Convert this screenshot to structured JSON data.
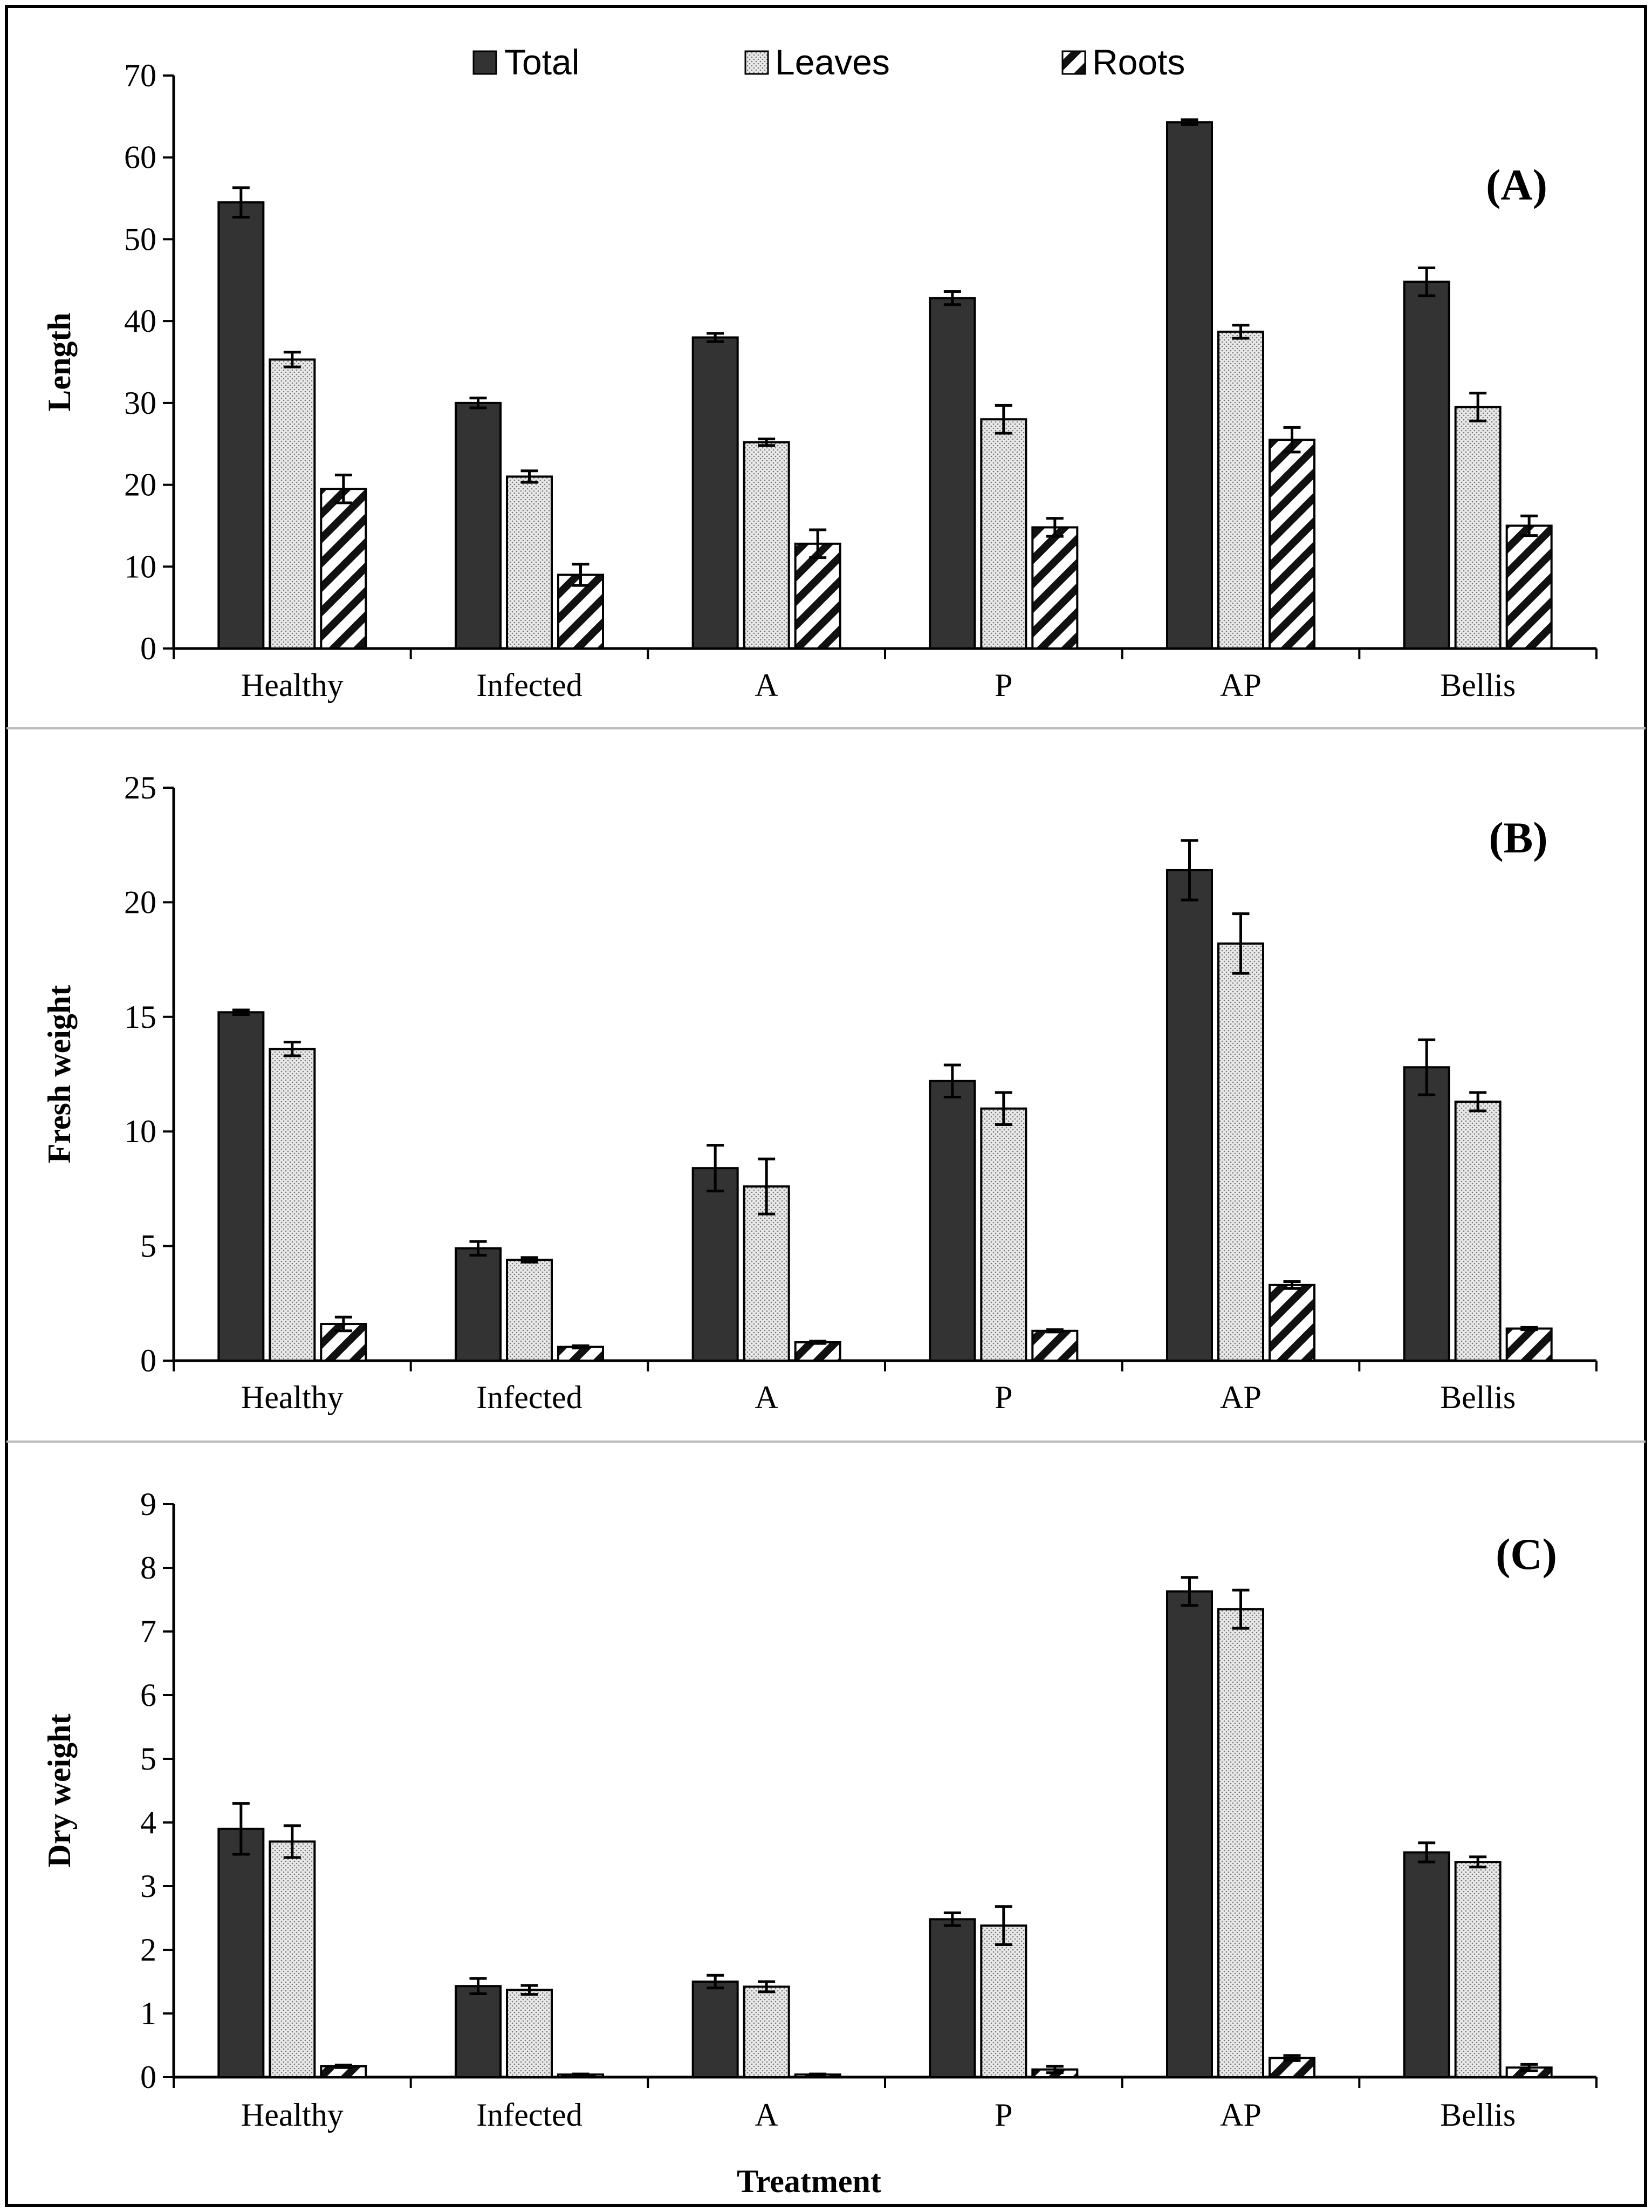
{
  "legend": [
    {
      "name": "Total",
      "pattern": "solid"
    },
    {
      "name": "Leaves",
      "pattern": "dots"
    },
    {
      "name": "Roots",
      "pattern": "diagonal"
    }
  ],
  "colors": {
    "total": "#333333",
    "leaves_bg": "#e8e8e8",
    "leaves_dot": "#777777",
    "roots_stripe": "#111111",
    "axis": "#000000",
    "frame": "#000000",
    "divider": "#bbbbbb"
  },
  "xlabel": "Treatment",
  "chart_data": [
    {
      "type": "bar",
      "panel_label": "(A)",
      "ylabel": "Length",
      "ylim": [
        0,
        70
      ],
      "yticks": [
        0,
        10,
        20,
        30,
        40,
        50,
        60,
        70
      ],
      "categories": [
        "Healthy",
        "Infected",
        "A",
        "P",
        "AP",
        "Bellis"
      ],
      "series": [
        {
          "name": "Total",
          "values": [
            54.5,
            30.0,
            38.0,
            42.8,
            64.3,
            44.8
          ],
          "errors": [
            1.8,
            0.6,
            0.5,
            0.8,
            0.3,
            1.7
          ]
        },
        {
          "name": "Leaves",
          "values": [
            35.3,
            21.0,
            25.2,
            28.0,
            38.7,
            29.5
          ],
          "errors": [
            0.9,
            0.7,
            0.4,
            1.7,
            0.8,
            1.7
          ]
        },
        {
          "name": "Roots",
          "values": [
            19.5,
            9.0,
            12.8,
            14.8,
            25.5,
            15.0
          ],
          "errors": [
            1.7,
            1.3,
            1.7,
            1.1,
            1.5,
            1.2
          ]
        }
      ]
    },
    {
      "type": "bar",
      "panel_label": "(B)",
      "ylabel": "Fresh weight",
      "ylim": [
        0,
        25
      ],
      "yticks": [
        0,
        5,
        10,
        15,
        20,
        25
      ],
      "categories": [
        "Healthy",
        "Infected",
        "A",
        "P",
        "AP",
        "Bellis"
      ],
      "series": [
        {
          "name": "Total",
          "values": [
            15.2,
            4.9,
            8.4,
            12.2,
            21.4,
            12.8
          ],
          "errors": [
            0.1,
            0.3,
            1.0,
            0.7,
            1.3,
            1.2
          ]
        },
        {
          "name": "Leaves",
          "values": [
            13.6,
            4.4,
            7.6,
            11.0,
            18.2,
            11.3
          ],
          "errors": [
            0.3,
            0.1,
            1.2,
            0.7,
            1.3,
            0.4
          ]
        },
        {
          "name": "Roots",
          "values": [
            1.6,
            0.6,
            0.8,
            1.3,
            3.3,
            1.4
          ],
          "errors": [
            0.3,
            0.05,
            0.05,
            0.05,
            0.15,
            0.05
          ]
        }
      ]
    },
    {
      "type": "bar",
      "panel_label": "(C)",
      "ylabel": "Dry weight",
      "ylim": [
        0,
        9
      ],
      "yticks": [
        0,
        1,
        2,
        3,
        4,
        5,
        6,
        7,
        8,
        9
      ],
      "categories": [
        "Healthy",
        "Infected",
        "A",
        "P",
        "AP",
        "Bellis"
      ],
      "series": [
        {
          "name": "Total",
          "values": [
            3.9,
            1.43,
            1.5,
            2.48,
            7.63,
            3.53
          ],
          "errors": [
            0.4,
            0.12,
            0.1,
            0.1,
            0.22,
            0.15
          ]
        },
        {
          "name": "Leaves",
          "values": [
            3.7,
            1.37,
            1.42,
            2.38,
            7.35,
            3.38
          ],
          "errors": [
            0.25,
            0.07,
            0.08,
            0.3,
            0.3,
            0.08
          ]
        },
        {
          "name": "Roots",
          "values": [
            0.17,
            0.04,
            0.04,
            0.12,
            0.3,
            0.15
          ],
          "errors": [
            0.02,
            0.01,
            0.01,
            0.05,
            0.04,
            0.05
          ]
        }
      ]
    }
  ]
}
